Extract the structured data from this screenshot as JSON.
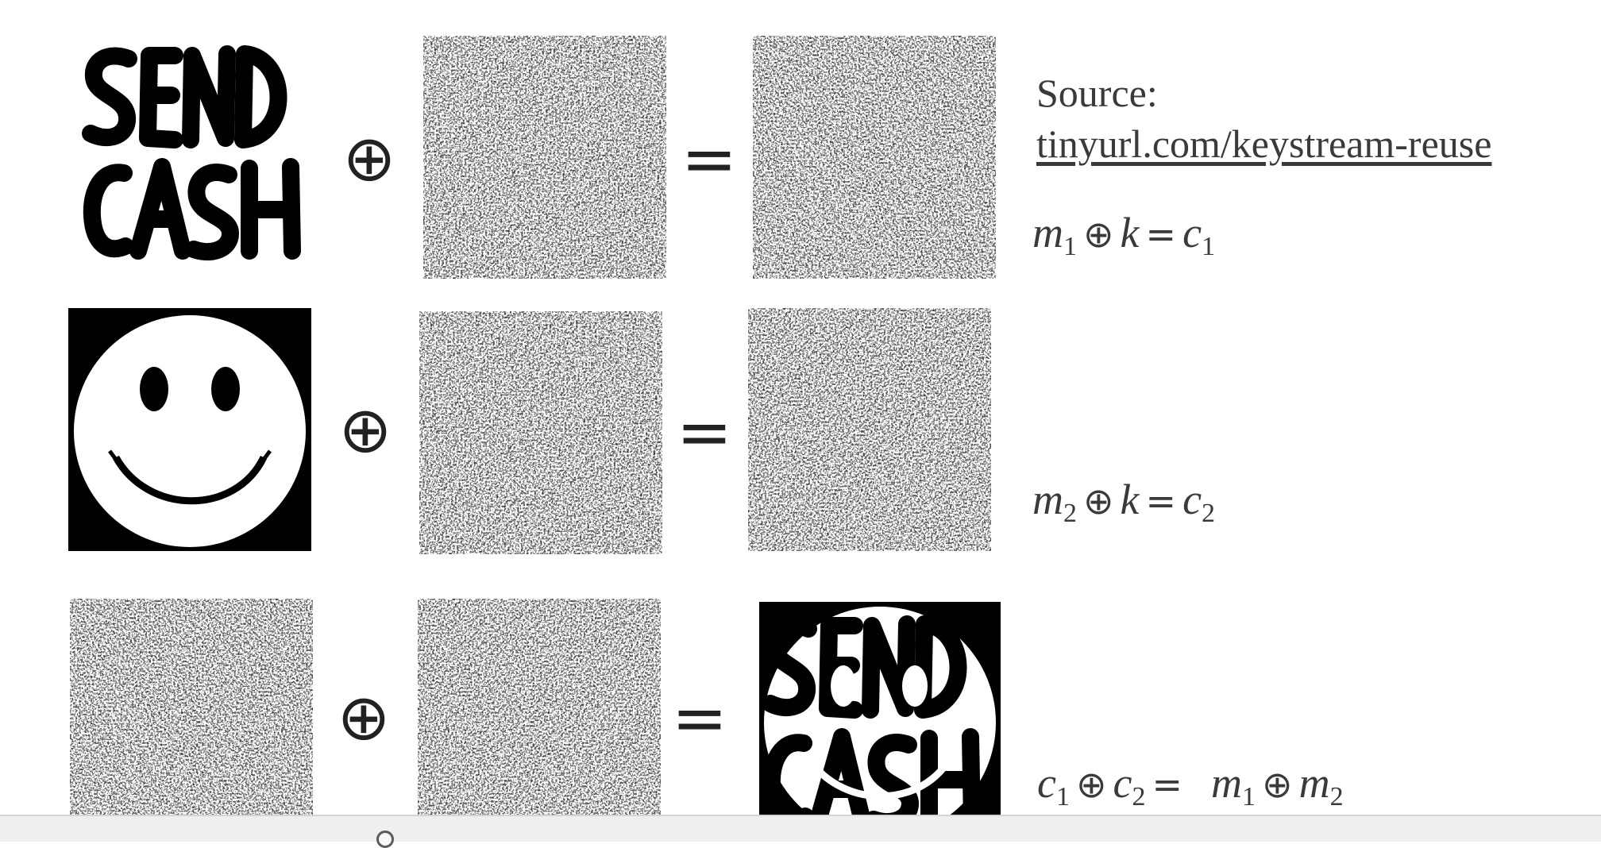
{
  "source": {
    "label": "Source:",
    "link": "tinyurl.com/keystream-reuse"
  },
  "tiles": {
    "send_cash_text": "SEND CASH",
    "solved_text": "SEND CASH"
  },
  "operators": {
    "xor": "⊕",
    "equals": "="
  },
  "equations": {
    "row1": {
      "m": "m",
      "m_sub": "1",
      "k": "k",
      "c": "c",
      "c_sub": "1"
    },
    "row2": {
      "m": "m",
      "m_sub": "2",
      "k": "k",
      "c": "c",
      "c_sub": "2"
    },
    "row3": {
      "c": "c",
      "c1_sub": "1",
      "c2_sub": "2",
      "m": "m",
      "m1_sub": "1",
      "m2_sub": "2"
    }
  },
  "icons": {
    "smiley": "smiley-face-icon",
    "noise": "random-noise-icon"
  }
}
